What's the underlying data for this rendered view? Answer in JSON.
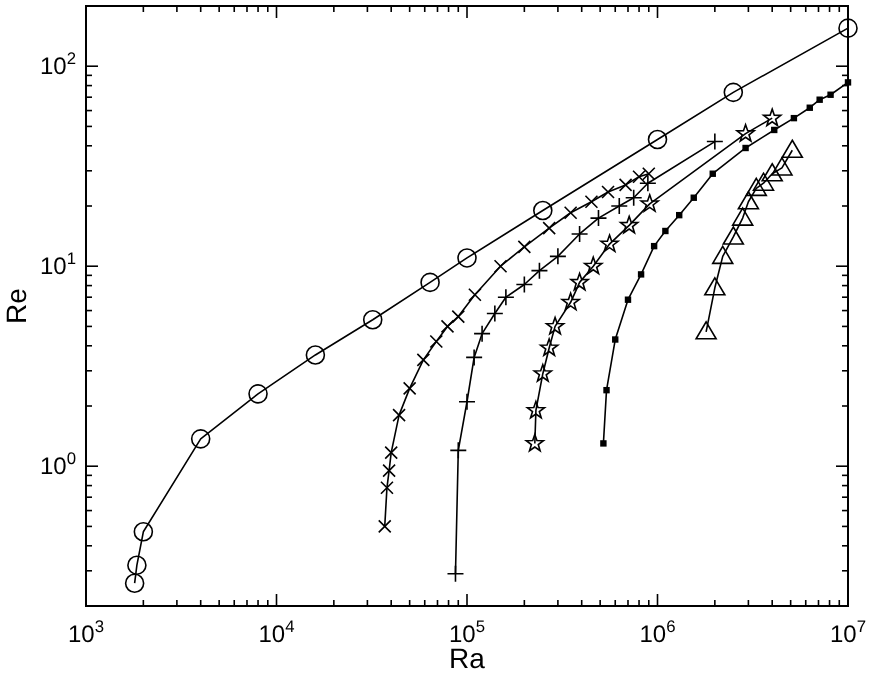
{
  "chart_data": {
    "type": "line",
    "xlabel": "Ra",
    "ylabel": "Re",
    "log": "xy",
    "grid": false,
    "xlim": [
      1000,
      10000000
    ],
    "ylim": [
      0.2,
      200
    ],
    "xticks": [
      {
        "value": 1000,
        "label": "10$^{3}$"
      },
      {
        "value": 2000,
        "label": null
      },
      {
        "value": 3000,
        "label": null
      },
      {
        "value": 4000,
        "label": null
      },
      {
        "value": 5000,
        "label": null
      },
      {
        "value": 6000,
        "label": null
      },
      {
        "value": 7000,
        "label": null
      },
      {
        "value": 8000,
        "label": null
      },
      {
        "value": 9000,
        "label": null
      },
      {
        "value": 10000,
        "label": "10$^{4}$"
      },
      {
        "value": 20000,
        "label": null
      },
      {
        "value": 30000,
        "label": null
      },
      {
        "value": 40000,
        "label": null
      },
      {
        "value": 50000,
        "label": null
      },
      {
        "value": 60000,
        "label": null
      },
      {
        "value": 70000,
        "label": null
      },
      {
        "value": 80000,
        "label": null
      },
      {
        "value": 90000,
        "label": null
      },
      {
        "value": 100000,
        "label": "10$^{5}$"
      },
      {
        "value": 200000,
        "label": null
      },
      {
        "value": 300000,
        "label": null
      },
      {
        "value": 400000,
        "label": null
      },
      {
        "value": 500000,
        "label": null
      },
      {
        "value": 600000,
        "label": null
      },
      {
        "value": 700000,
        "label": null
      },
      {
        "value": 800000,
        "label": null
      },
      {
        "value": 900000,
        "label": null
      },
      {
        "value": 1000000,
        "label": "10$^{6}$"
      },
      {
        "value": 2000000,
        "label": null
      },
      {
        "value": 3000000,
        "label": null
      },
      {
        "value": 4000000,
        "label": null
      },
      {
        "value": 5000000,
        "label": null
      },
      {
        "value": 6000000,
        "label": null
      },
      {
        "value": 7000000,
        "label": null
      },
      {
        "value": 8000000,
        "label": null
      },
      {
        "value": 9000000,
        "label": null
      },
      {
        "value": 10000000,
        "label": "10$^{7}$"
      }
    ],
    "yticks": [
      {
        "value": 0.2,
        "label": null
      },
      {
        "value": 0.3,
        "label": null
      },
      {
        "value": 0.4,
        "label": null
      },
      {
        "value": 0.5,
        "label": null
      },
      {
        "value": 0.6,
        "label": null
      },
      {
        "value": 0.7,
        "label": null
      },
      {
        "value": 0.8,
        "label": null
      },
      {
        "value": 0.9,
        "label": null
      },
      {
        "value": 1,
        "label": "10$^{0}$"
      },
      {
        "value": 2,
        "label": null
      },
      {
        "value": 3,
        "label": null
      },
      {
        "value": 4,
        "label": null
      },
      {
        "value": 5,
        "label": null
      },
      {
        "value": 6,
        "label": null
      },
      {
        "value": 7,
        "label": null
      },
      {
        "value": 8,
        "label": null
      },
      {
        "value": 9,
        "label": null
      },
      {
        "value": 10,
        "label": "10$^{1}$"
      },
      {
        "value": 20,
        "label": null
      },
      {
        "value": 30,
        "label": null
      },
      {
        "value": 40,
        "label": null
      },
      {
        "value": 50,
        "label": null
      },
      {
        "value": 60,
        "label": null
      },
      {
        "value": 70,
        "label": null
      },
      {
        "value": 80,
        "label": null
      },
      {
        "value": 90,
        "label": null
      },
      {
        "value": 100,
        "label": "10$^{2}$"
      },
      {
        "value": 200,
        "label": null
      }
    ],
    "series": [
      {
        "color": "#000000",
        "marker": "circle",
        "x": [
          1800,
          1850,
          2000,
          4000,
          8000,
          16000,
          32000,
          64000,
          100000,
          250000,
          1000000,
          2500000,
          10000000
        ],
        "values": [
          0.26,
          0.32,
          0.47,
          1.37,
          2.3,
          3.6,
          5.4,
          8.3,
          11,
          19,
          43,
          74,
          155
        ]
      },
      {
        "color": "#000000",
        "marker": "cross",
        "x": [
          37000,
          38000,
          39000,
          40000,
          44000,
          50000,
          59000,
          69000,
          79000,
          90000,
          110000,
          150000,
          200000,
          270000,
          350000,
          450000,
          550000,
          680000,
          800000,
          900000
        ],
        "values": [
          0.5,
          0.78,
          0.95,
          1.17,
          1.8,
          2.45,
          3.4,
          4.2,
          5.0,
          5.6,
          7.2,
          10,
          12.5,
          15.5,
          18.5,
          21,
          23.5,
          25.5,
          28,
          29
        ]
      },
      {
        "color": "#000000",
        "marker": "plus",
        "x": [
          87000,
          90000,
          100000,
          109000,
          120000,
          140000,
          160000,
          200000,
          240000,
          300000,
          390000,
          490000,
          630000,
          750000,
          890000,
          2000000
        ],
        "values": [
          0.29,
          1.2,
          2.1,
          3.5,
          4.6,
          5.8,
          7.0,
          8.1,
          9.5,
          11.2,
          14.5,
          17.4,
          20,
          22,
          26,
          42
        ]
      },
      {
        "color": "#000000",
        "marker": "star",
        "x": [
          227000,
          230000,
          250000,
          270000,
          290000,
          350000,
          390000,
          460000,
          560000,
          710000,
          910000,
          2900000,
          4000000
        ],
        "values": [
          1.3,
          1.9,
          2.9,
          3.9,
          5.0,
          6.6,
          8.3,
          10,
          12.9,
          16,
          20.5,
          46,
          55
        ]
      },
      {
        "color": "#000000",
        "marker": "square",
        "x": [
          520000,
          540000,
          600000,
          700000,
          820000,
          960000,
          1100000,
          1300000,
          1550000,
          1950000,
          2900000,
          4100000,
          5200000,
          6300000,
          7100000,
          8100000,
          10000000
        ],
        "values": [
          1.3,
          2.4,
          4.3,
          6.8,
          9.1,
          12.6,
          15,
          18,
          22,
          29,
          39,
          48,
          55,
          62,
          68,
          72,
          83
        ]
      },
      {
        "color": "#000000",
        "marker": "triangle",
        "x": [
          1800000,
          2000000,
          2200000,
          2500000,
          2800000,
          3000000,
          3300000,
          3600000,
          4000000,
          4500000,
          5100000
        ],
        "values": [
          4.7,
          7.8,
          11.2,
          14,
          17.4,
          21,
          24.5,
          26,
          29,
          31,
          38
        ]
      }
    ]
  }
}
